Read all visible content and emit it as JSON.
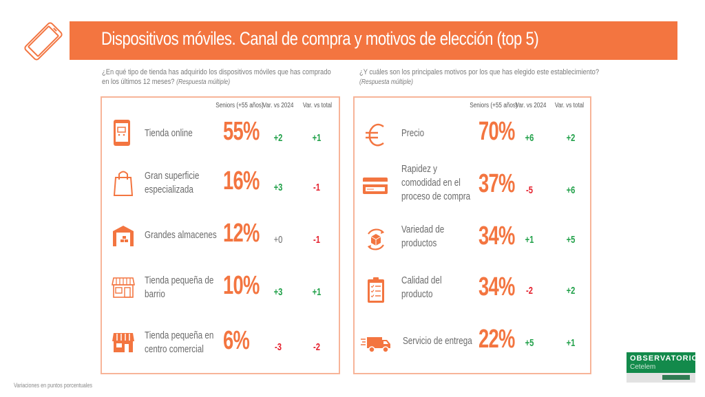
{
  "header": {
    "title": "Dispositivos móviles. Canal de compra y motivos de elección (top 5)",
    "icon": "smartphone-icon"
  },
  "left": {
    "question": "¿En qué tipo de tienda has adquirido los dispositivos móviles que has comprado",
    "question_line2": "en los últimos 12 meses?",
    "question_note": "(Respuesta múltiple)",
    "columns": [
      "Seniors (+55 años)",
      "Var. vs 2024",
      "Var. vs total"
    ],
    "rows": [
      {
        "label": "Tienda online",
        "label2": "",
        "pct": "55%",
        "var2024": "+2",
        "vartotal": "+1",
        "icon": "tablet-cart-icon"
      },
      {
        "label": "Gran superficie",
        "label2": "especializada",
        "pct": "16%",
        "var2024": "+3",
        "vartotal": "-1",
        "icon": "shopping-bag-icon"
      },
      {
        "label": "Grandes almacenes",
        "label2": "",
        "pct": "12%",
        "var2024": "+0",
        "vartotal": "-1",
        "icon": "warehouse-icon"
      },
      {
        "label": "Tienda pequeña de",
        "label2": "barrio",
        "pct": "10%",
        "var2024": "+3",
        "vartotal": "+1",
        "icon": "storefront-outline-icon"
      },
      {
        "label": "Tienda pequeña en",
        "label2": "centro comercial",
        "pct": "6%",
        "var2024": "-3",
        "vartotal": "-2",
        "icon": "storefront-solid-icon"
      }
    ]
  },
  "right": {
    "question": "¿Y cuáles son los principales motivos por los que has elegido este establecimiento?",
    "question_note": "(Respuesta múltiple)",
    "columns": [
      "Seniors (+55 años)",
      "Var. vs 2024",
      "Var. vs total"
    ],
    "rows": [
      {
        "label": "Precio",
        "label2": "",
        "label3": "",
        "pct": "70%",
        "var2024": "+6",
        "vartotal": "+2",
        "icon": "euro-icon"
      },
      {
        "label": "Rapidez y",
        "label2": "comodidad en el",
        "label3": "proceso de compra",
        "pct": "37%",
        "var2024": "-5",
        "vartotal": "+6",
        "icon": "credit-card-icon"
      },
      {
        "label": "Variedad de",
        "label2": "productos",
        "label3": "",
        "pct": "34%",
        "var2024": "+1",
        "vartotal": "+5",
        "icon": "box-cycle-icon"
      },
      {
        "label": "Calidad del",
        "label2": "producto",
        "label3": "",
        "pct": "34%",
        "var2024": "-2",
        "vartotal": "+2",
        "icon": "clipboard-check-icon"
      },
      {
        "label": "Servicio de entrega",
        "label2": "",
        "label3": "",
        "pct": "22%",
        "var2024": "+5",
        "vartotal": "+1",
        "icon": "delivery-truck-icon"
      }
    ]
  },
  "footnote": "Variaciones en puntos porcentuales",
  "logo": {
    "name": "OBSERVATORIO",
    "sub": "Cetelem"
  },
  "colors": {
    "accent": "#f37540",
    "positive": "#22a14a",
    "negative": "#e5212e",
    "brand_green": "#138a4b"
  }
}
